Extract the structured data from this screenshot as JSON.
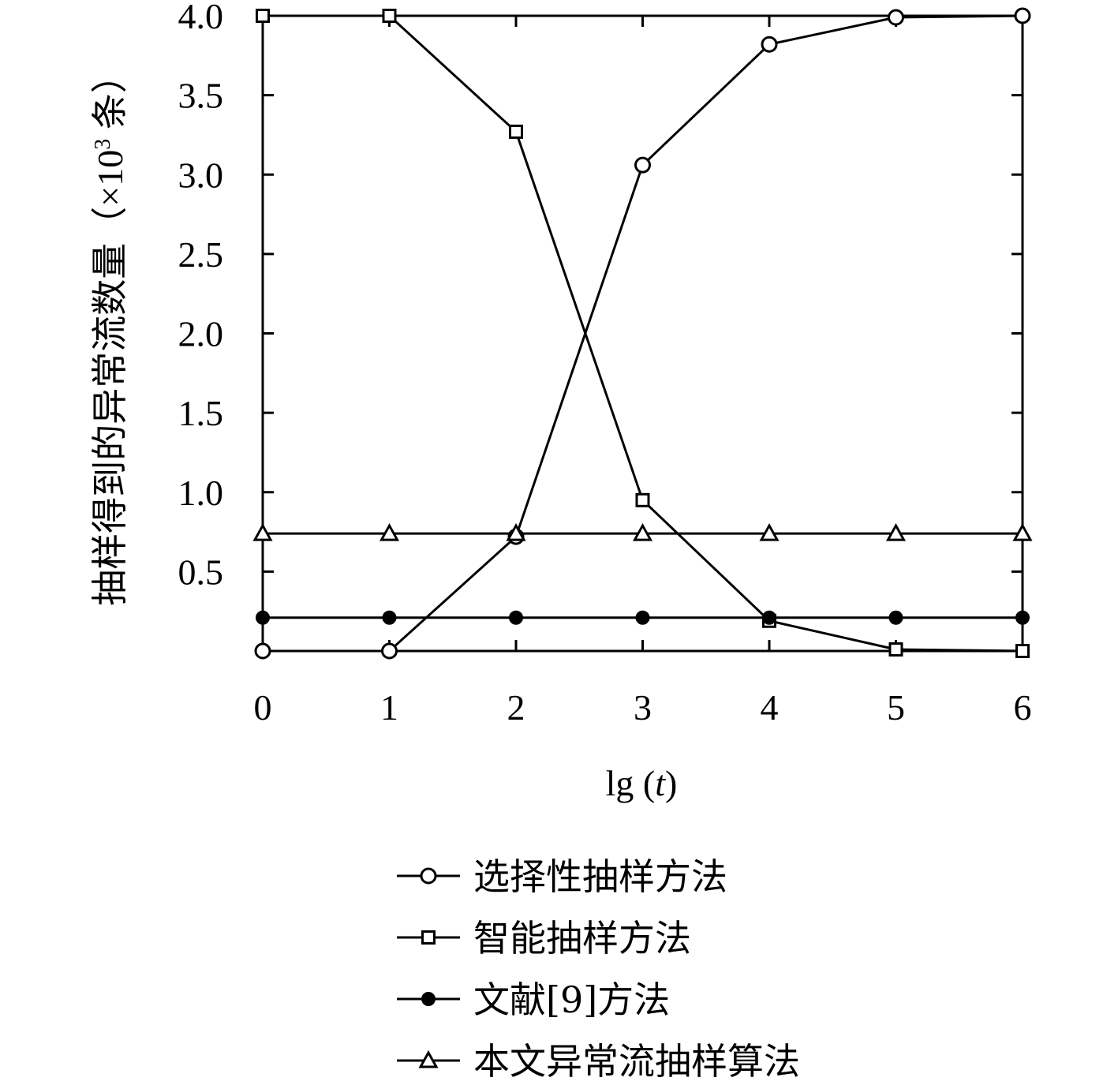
{
  "chart_data": {
    "type": "line",
    "xlabel": "lg (t)",
    "ylabel": "抽样得到的异常流数量 (×10³ 条)",
    "x": [
      0,
      1,
      2,
      3,
      4,
      5,
      6
    ],
    "xlim": [
      0,
      6
    ],
    "ylim": [
      0,
      4.0
    ],
    "xticks": [
      "0",
      "1",
      "2",
      "3",
      "4",
      "5",
      "6"
    ],
    "yticks": [
      "0.5",
      "1.0",
      "1.5",
      "2.0",
      "2.5",
      "3.0",
      "3.5",
      "4.0"
    ],
    "grid": false,
    "legend_position": "bottom",
    "series": [
      {
        "name": "选择性抽样方法",
        "marker": "circle-open",
        "values": [
          0.0,
          0.0,
          0.72,
          3.06,
          3.82,
          3.99,
          4.0
        ]
      },
      {
        "name": "智能抽样方法",
        "marker": "square-open",
        "values": [
          4.0,
          4.0,
          3.27,
          0.95,
          0.19,
          0.01,
          0.0
        ]
      },
      {
        "name": "文献[9]方法",
        "marker": "circle-filled",
        "values": [
          0.21,
          0.21,
          0.21,
          0.21,
          0.21,
          0.21,
          0.21
        ]
      },
      {
        "name": "本文异常流抽样算法",
        "marker": "triangle-open",
        "values": [
          0.74,
          0.74,
          0.74,
          0.74,
          0.74,
          0.74,
          0.74
        ]
      }
    ]
  }
}
